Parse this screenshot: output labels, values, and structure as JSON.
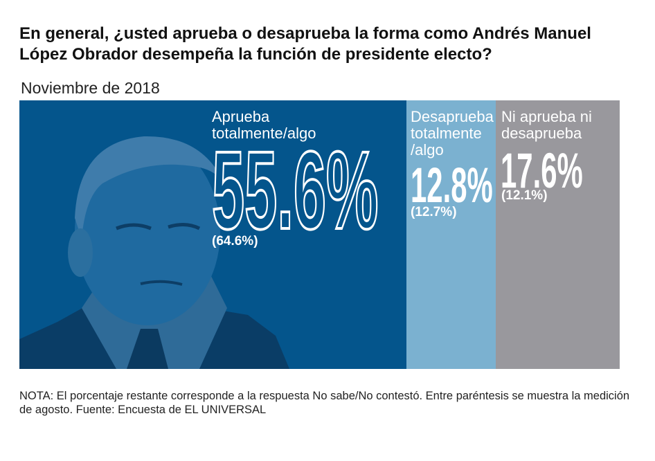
{
  "title": "En general, ¿usted aprueba o desaprueba la forma como Andrés Manuel López Obrador desempeña la función de presidente electo?",
  "subtitle": "Noviembre de 2018",
  "note": "NOTA: El porcentaje restante corresponde  a la respuesta No sabe/No contestó. Entre paréntesis se muestra  la medición de agosto. Fuente: Encuesta de EL UNIVERSAL",
  "chart_data": {
    "type": "bar",
    "stacked": true,
    "title": "En general, ¿usted aprueba o desaprueba la forma como Andrés Manuel López Obrador desempeña la función de presidente electo?",
    "subtitle": "Noviembre de 2018",
    "categories": [
      "Aprueba totalmente/algo",
      "Desaprueba totalmente /algo",
      "Ni aprueba ni desaprueba"
    ],
    "values": [
      55.6,
      12.8,
      17.6
    ],
    "previous_values": [
      64.6,
      12.7,
      12.1
    ],
    "value_labels": [
      "55.6%",
      "12.8%",
      "17.6%"
    ],
    "previous_labels": [
      "(64.6%)",
      "(12.7%)",
      "(12.1%)"
    ],
    "colors": [
      "#04558c",
      "#7bb1d0",
      "#99989d"
    ]
  }
}
